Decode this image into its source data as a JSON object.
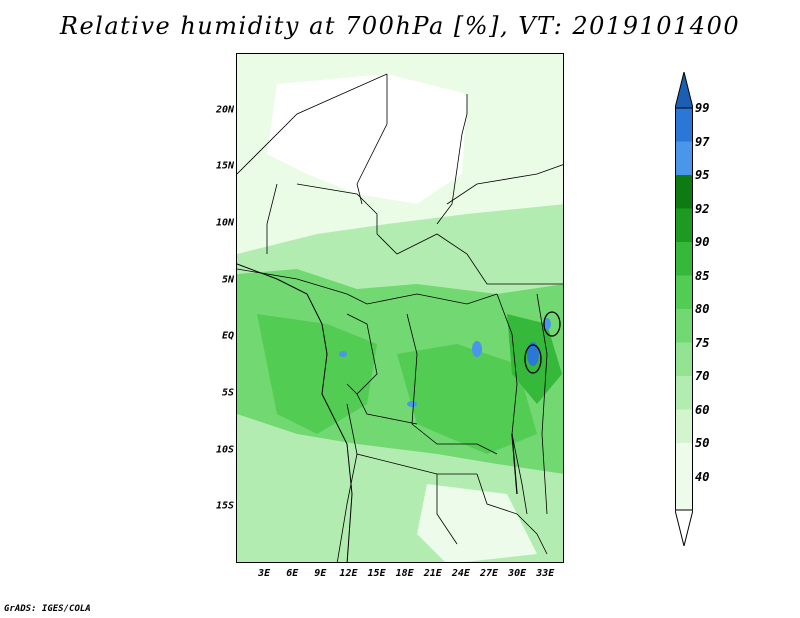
{
  "title": "Relative humidity at 700hPa [%], VT: 2019101400",
  "footer": "GrADS: IGES/COLA",
  "lat_labels": [
    {
      "text": "20N",
      "lat": 20
    },
    {
      "text": "15N",
      "lat": 15
    },
    {
      "text": "10N",
      "lat": 10
    },
    {
      "text": "5N",
      "lat": 5
    },
    {
      "text": "EQ",
      "lat": 0
    },
    {
      "text": "5S",
      "lat": -5
    },
    {
      "text": "10S",
      "lat": -10
    },
    {
      "text": "15S",
      "lat": -15
    }
  ],
  "lon_labels": [
    {
      "text": "3E",
      "lon": 3
    },
    {
      "text": "6E",
      "lon": 6
    },
    {
      "text": "9E",
      "lon": 9
    },
    {
      "text": "12E",
      "lon": 12
    },
    {
      "text": "15E",
      "lon": 15
    },
    {
      "text": "18E",
      "lon": 18
    },
    {
      "text": "21E",
      "lon": 21
    },
    {
      "text": "24E",
      "lon": 24
    },
    {
      "text": "27E",
      "lon": 27
    },
    {
      "text": "30E",
      "lon": 30
    },
    {
      "text": "33E",
      "lon": 33
    }
  ],
  "map_extent": {
    "lon_min": 0,
    "lon_max": 35,
    "lat_min": -20,
    "lat_max": 25
  },
  "colorbar": {
    "labels": [
      "99",
      "97",
      "95",
      "92",
      "90",
      "85",
      "80",
      "75",
      "70",
      "60",
      "50",
      "40"
    ],
    "colors": [
      "#1a5fb4",
      "#2a77d8",
      "#4a96ea",
      "#0d7a12",
      "#1e9a22",
      "#36b83a",
      "#52cc52",
      "#72d872",
      "#93e393",
      "#b3ecb0",
      "#d2f5ce",
      "#ecfbea"
    ]
  }
}
